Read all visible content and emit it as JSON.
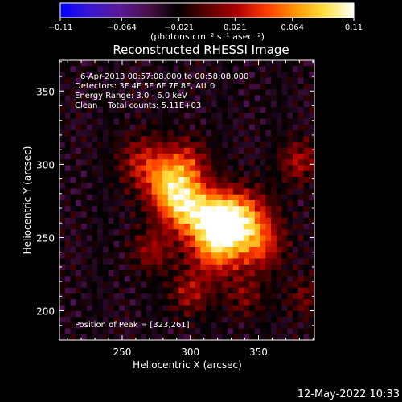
{
  "chart_data": {
    "type": "heatmap",
    "title": "Reconstructed RHESSI Image",
    "xlabel": "Heliocentric X (arcsec)",
    "ylabel": "Heliocentric Y (arcsec)",
    "xlim": [
      204,
      391
    ],
    "ylim": [
      180,
      371
    ],
    "x_ticks": [
      250,
      300,
      350
    ],
    "y_ticks": [
      200,
      250,
      300,
      350
    ],
    "colorbar": {
      "min": -0.11,
      "max": 0.11,
      "ticks": [
        -0.11,
        -0.064,
        -0.021,
        0.021,
        0.064,
        0.11
      ],
      "tick_labels": [
        "-0.11",
        "-0.064",
        "-0.021",
        "0.021",
        "0.064",
        "0.11"
      ],
      "unit_label": "(photons cm⁻² s⁻¹ asec⁻²)",
      "colormap": [
        "#0000ff",
        "#3818d0",
        "#5a1a9a",
        "#4a1048",
        "#000000",
        "#5a0000",
        "#aa0000",
        "#ff3a00",
        "#ff9400",
        "#ffe040",
        "#ffffff"
      ]
    },
    "annotations": [
      "6-Apr-2013 00:57:08.000 to 00:58:08.000",
      "Detectors: 3F 4F 5F 6F 7F 8F, Att 0",
      "Energy Range: 3.0 - 6.0 keV",
      "Clean    Total counts: 5.11E+03"
    ],
    "peak_label": "Position of Peak = [323,261]",
    "peak_position": [
      323,
      261
    ],
    "sources": [
      {
        "x": 297,
        "y": 271,
        "amplitude": 0.104,
        "width": 13
      },
      {
        "x": 323,
        "y": 261,
        "amplitude": 0.11,
        "width": 13
      },
      {
        "x": 340,
        "y": 262,
        "amplitude": 0.07,
        "width": 14
      },
      {
        "x": 282,
        "y": 286,
        "amplitude": 0.065,
        "width": 12
      },
      {
        "x": 318,
        "y": 242,
        "amplitude": 0.07,
        "width": 14
      },
      {
        "x": 296,
        "y": 300,
        "amplitude": 0.055,
        "width": 12
      },
      {
        "x": 352,
        "y": 244,
        "amplitude": 0.05,
        "width": 12
      },
      {
        "x": 265,
        "y": 302,
        "amplitude": 0.048,
        "width": 12
      },
      {
        "x": 380,
        "y": 302,
        "amplitude": 0.045,
        "width": 10
      },
      {
        "x": 300,
        "y": 212,
        "amplitude": 0.042,
        "width": 10
      },
      {
        "x": 272,
        "y": 241,
        "amplitude": 0.04,
        "width": 10
      },
      {
        "x": 340,
        "y": 210,
        "amplitude": 0.03,
        "width": 10
      },
      {
        "x": 385,
        "y": 210,
        "amplitude": 0.028,
        "width": 10
      }
    ],
    "background_level": -0.026
  },
  "footer": {
    "timestamp": "12-May-2022 10:33"
  }
}
